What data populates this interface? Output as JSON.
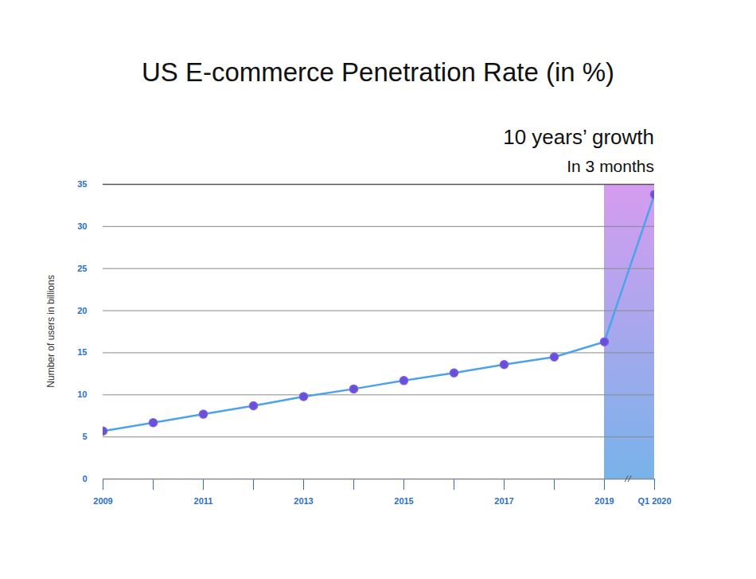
{
  "chart_data": {
    "type": "line",
    "title": "US E-commerce Penetration Rate (in %)",
    "annotations": [
      "10 years’ growth",
      "In 3 months"
    ],
    "y_label": "Number of users in billions",
    "categories": [
      "2009",
      null,
      "2011",
      null,
      "2013",
      null,
      "2015",
      null,
      "2017",
      null,
      "2019",
      "Q1 2020"
    ],
    "series": [
      {
        "name": "US E-commerce Penetration Rate",
        "color": "#4da3ea",
        "marker": "circle",
        "values": [
          5.7,
          6.7,
          7.7,
          8.7,
          9.8,
          10.7,
          11.7,
          12.6,
          13.6,
          14.5,
          16.3,
          33.8
        ]
      }
    ],
    "ylim": [
      0,
      35
    ],
    "yticks": [
      0,
      5,
      10,
      15,
      20,
      25,
      30,
      35
    ],
    "grid": true
  }
}
